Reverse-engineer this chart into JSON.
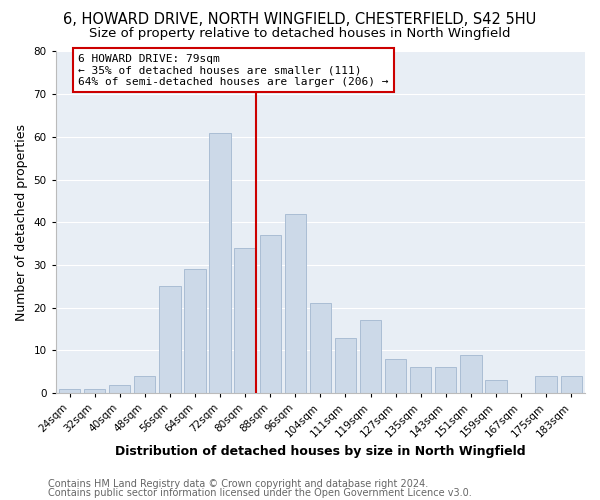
{
  "title1": "6, HOWARD DRIVE, NORTH WINGFIELD, CHESTERFIELD, S42 5HU",
  "title2": "Size of property relative to detached houses in North Wingfield",
  "xlabel": "Distribution of detached houses by size in North Wingfield",
  "ylabel": "Number of detached properties",
  "bar_labels": [
    "24sqm",
    "32sqm",
    "40sqm",
    "48sqm",
    "56sqm",
    "64sqm",
    "72sqm",
    "80sqm",
    "88sqm",
    "96sqm",
    "104sqm",
    "111sqm",
    "119sqm",
    "127sqm",
    "135sqm",
    "143sqm",
    "151sqm",
    "159sqm",
    "167sqm",
    "175sqm",
    "183sqm"
  ],
  "bar_values": [
    1,
    1,
    2,
    4,
    25,
    29,
    61,
    34,
    37,
    42,
    21,
    13,
    17,
    8,
    6,
    6,
    9,
    3,
    0,
    4,
    4
  ],
  "bar_color": "#ccd9e8",
  "bar_edge_color": "#aabdd4",
  "vline_color": "#cc0000",
  "annotation_text": "6 HOWARD DRIVE: 79sqm\n← 35% of detached houses are smaller (111)\n64% of semi-detached houses are larger (206) →",
  "annotation_box_edge": "#cc0000",
  "ylim": [
    0,
    80
  ],
  "yticks": [
    0,
    10,
    20,
    30,
    40,
    50,
    60,
    70,
    80
  ],
  "footer1": "Contains HM Land Registry data © Crown copyright and database right 2024.",
  "footer2": "Contains public sector information licensed under the Open Government Licence v3.0.",
  "bg_color": "#ffffff",
  "plot_bg_color": "#e8eef5",
  "grid_color": "#ffffff",
  "title1_fontsize": 10.5,
  "title2_fontsize": 9.5,
  "axis_label_fontsize": 9,
  "tick_fontsize": 7.5,
  "footer_fontsize": 7,
  "annot_fontsize": 8
}
